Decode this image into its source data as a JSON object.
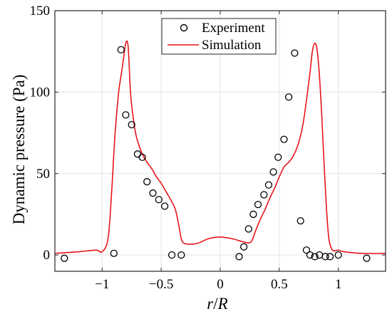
{
  "chart_data": {
    "type": "line",
    "xlabel_italic": "r",
    "xlabel_sep": "/",
    "xlabel_italic2": "R",
    "ylabel": "Dynamic pressure (Pa)",
    "xlim": [
      -1.4,
      1.4
    ],
    "ylim": [
      -10,
      150
    ],
    "xticks": [
      -1,
      -0.5,
      0,
      0.5,
      1
    ],
    "xtick_labels": [
      "−1",
      "−0.5",
      "0",
      "0.5",
      "1"
    ],
    "yticks": [
      0,
      50,
      100,
      150
    ],
    "ytick_labels": [
      "0",
      "50",
      "100",
      "150"
    ],
    "grid": true,
    "legend_position": "top-center",
    "series": [
      {
        "name": "Experiment",
        "kind": "scatter",
        "color": "#000000",
        "x": [
          -1.32,
          -0.9,
          -0.84,
          -0.8,
          -0.75,
          -0.7,
          -0.66,
          -0.62,
          -0.57,
          -0.52,
          -0.47,
          -0.41,
          -0.33,
          0.16,
          0.2,
          0.24,
          0.28,
          0.32,
          0.37,
          0.41,
          0.45,
          0.49,
          0.54,
          0.58,
          0.63,
          0.68,
          0.73,
          0.76,
          0.8,
          0.84,
          0.89,
          0.93,
          1.0,
          1.24
        ],
        "y": [
          -2,
          1,
          126,
          86,
          80,
          62,
          60,
          45,
          38,
          34,
          30,
          0,
          0,
          -1,
          5,
          16,
          25,
          31,
          37,
          43,
          51,
          60,
          71,
          97,
          124,
          21,
          3,
          0,
          -1,
          0,
          -1,
          -1,
          0,
          -2
        ]
      },
      {
        "name": "Simulation",
        "kind": "line",
        "color": "#e8141b",
        "x": [
          -1.4,
          -1.2,
          -1.05,
          -1.0,
          -0.95,
          -0.92,
          -0.89,
          -0.86,
          -0.84,
          -0.82,
          -0.8,
          -0.78,
          -0.76,
          -0.74,
          -0.72,
          -0.7,
          -0.66,
          -0.62,
          -0.58,
          -0.54,
          -0.5,
          -0.46,
          -0.42,
          -0.38,
          -0.35,
          -0.33,
          -0.3,
          -0.2,
          -0.1,
          0.0,
          0.1,
          0.2,
          0.26,
          0.3,
          0.34,
          0.38,
          0.42,
          0.46,
          0.5,
          0.54,
          0.58,
          0.62,
          0.66,
          0.7,
          0.73,
          0.76,
          0.78,
          0.8,
          0.82,
          0.84,
          0.86,
          0.88,
          0.9,
          0.92,
          0.95,
          1.0,
          1.05,
          1.2,
          1.4
        ],
        "y": [
          1,
          2,
          3,
          2,
          10,
          38,
          75,
          100,
          110,
          120,
          130,
          128,
          100,
          86,
          76,
          70,
          62,
          57,
          53,
          48,
          44,
          39,
          34,
          28,
          18,
          10,
          7,
          7,
          10,
          11,
          10,
          8,
          8,
          15,
          22,
          28,
          35,
          41,
          48,
          54,
          57,
          61,
          68,
          80,
          95,
          112,
          125,
          130,
          126,
          110,
          85,
          55,
          28,
          10,
          3,
          3,
          2,
          1,
          1
        ]
      }
    ]
  }
}
